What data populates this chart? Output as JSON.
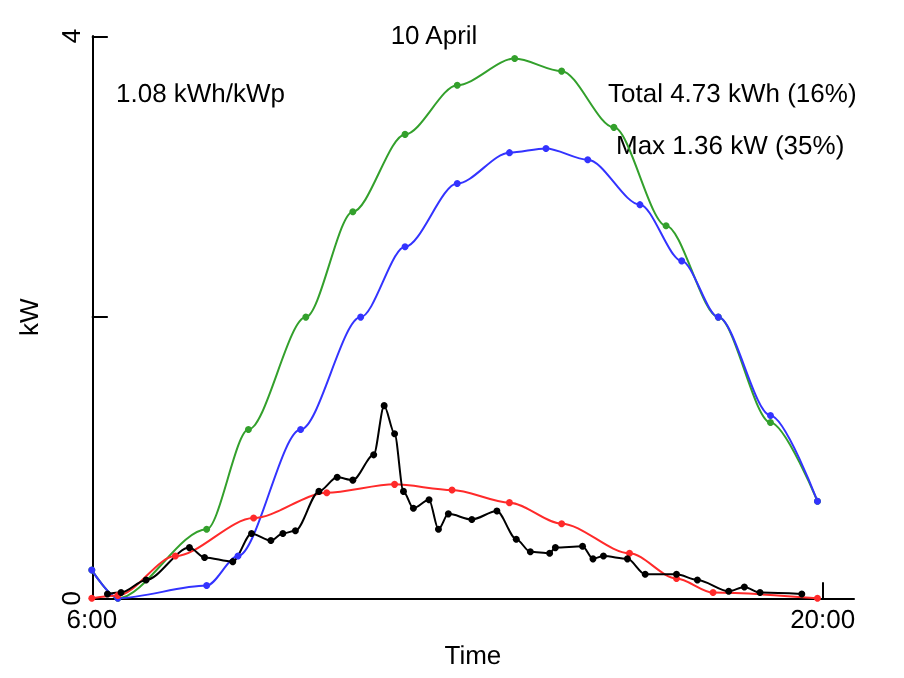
{
  "chart_data": {
    "type": "line",
    "title": "10 April",
    "xlabel": "Time",
    "ylabel": "kW",
    "annotations": [
      "1.08 kWh/kWp",
      "Total 4.73 kWh (16%)",
      "Max 1.36 kW (35%)"
    ],
    "xlim": [
      6,
      20.6
    ],
    "xticks": [
      {
        "value": 6,
        "label": "6:00"
      },
      {
        "value": 20,
        "label": "20:00"
      }
    ],
    "ylim": [
      0,
      4
    ],
    "yticks": [
      0,
      {
        "value": 2,
        "label": null
      },
      4
    ],
    "marker": "circle",
    "grid": false,
    "series": [
      {
        "color": "#33a02c",
        "x": [
          6,
          6.5,
          8.2,
          9,
          10.1,
          11,
          12,
          13,
          14.1,
          15,
          16,
          17,
          18,
          19,
          19.9
        ],
        "values": [
          0.2,
          0.0,
          0.49,
          1.2,
          2.0,
          2.75,
          3.3,
          3.65,
          3.84,
          3.75,
          3.35,
          2.65,
          2.0,
          1.25,
          0.69
        ]
      },
      {
        "color": "#3333ff",
        "x": [
          6,
          6.5,
          8.2,
          8.8,
          10,
          11.15,
          12,
          13,
          14,
          14.7,
          15.5,
          16.5,
          17.3,
          18,
          19,
          19.9
        ],
        "values": [
          0.2,
          0.0,
          0.09,
          0.3,
          1.2,
          2.0,
          2.5,
          2.95,
          3.17,
          3.2,
          3.12,
          2.8,
          2.4,
          2.0,
          1.3,
          0.69
        ]
      },
      {
        "color": "#ff2a2a",
        "x": [
          6,
          6.5,
          7.6,
          9.1,
          10.5,
          11.8,
          12.9,
          14,
          15,
          16.3,
          17.2,
          17.9,
          19.9
        ],
        "values": [
          0.0,
          0.02,
          0.3,
          0.57,
          0.75,
          0.81,
          0.77,
          0.68,
          0.53,
          0.32,
          0.14,
          0.04,
          0.0
        ]
      },
      {
        "color": "#000000",
        "x": [
          6.3,
          6.56,
          7.04,
          7.87,
          8.16,
          8.7,
          9.06,
          9.43,
          9.66,
          9.9,
          10.35,
          10.7,
          11.0,
          11.4,
          11.6,
          11.8,
          11.97,
          12.16,
          12.46,
          12.64,
          12.83,
          13.28,
          13.76,
          14.13,
          14.4,
          14.77,
          14.88,
          15.4,
          15.6,
          15.8,
          16.26,
          16.6,
          17.2,
          17.6,
          18.2,
          18.5,
          18.8,
          19.6
        ],
        "values": [
          0.03,
          0.04,
          0.13,
          0.36,
          0.29,
          0.26,
          0.46,
          0.41,
          0.46,
          0.48,
          0.76,
          0.86,
          0.84,
          1.02,
          1.37,
          1.17,
          0.76,
          0.64,
          0.7,
          0.49,
          0.6,
          0.56,
          0.62,
          0.42,
          0.33,
          0.32,
          0.36,
          0.37,
          0.28,
          0.3,
          0.28,
          0.17,
          0.17,
          0.13,
          0.05,
          0.08,
          0.04,
          0.03
        ]
      }
    ]
  }
}
